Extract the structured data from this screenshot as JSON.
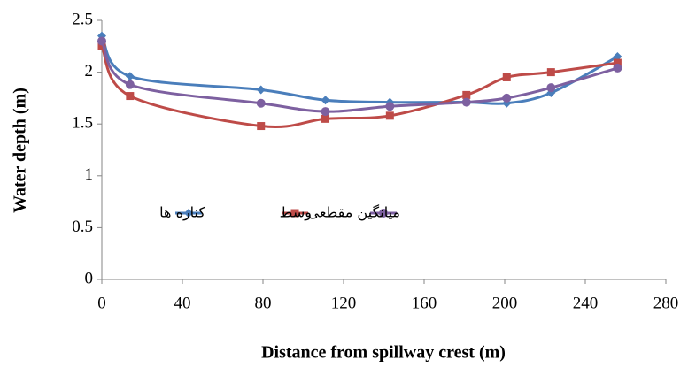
{
  "chart_data": {
    "type": "line",
    "x_label": "Distance from spillway crest (m)",
    "y_label": "Water depth (m)",
    "x": [
      0,
      14,
      79,
      111,
      143,
      181,
      201,
      223,
      256
    ],
    "series": [
      {
        "name": "کناره ها",
        "color": "#4a7ebb",
        "marker": "diamond",
        "values": [
          2.35,
          1.96,
          1.83,
          1.73,
          1.71,
          1.71,
          1.7,
          1.8,
          2.15
        ]
      },
      {
        "name": "وسط",
        "color": "#be4b48",
        "marker": "square",
        "values": [
          2.25,
          1.77,
          1.48,
          1.55,
          1.58,
          1.78,
          1.95,
          2.0,
          2.09
        ]
      },
      {
        "name": "میانگین مقطعی",
        "color": "#7d60a0",
        "marker": "circle",
        "values": [
          2.3,
          1.88,
          1.7,
          1.62,
          1.67,
          1.71,
          1.75,
          1.85,
          2.04
        ]
      }
    ],
    "xlim": [
      0,
      280
    ],
    "xticks": [
      0,
      40,
      80,
      120,
      160,
      200,
      240,
      280
    ],
    "ylim": [
      0,
      2.5
    ],
    "yticks": [
      0,
      0.5,
      1,
      1.5,
      2,
      2.5
    ],
    "smooth": true
  }
}
